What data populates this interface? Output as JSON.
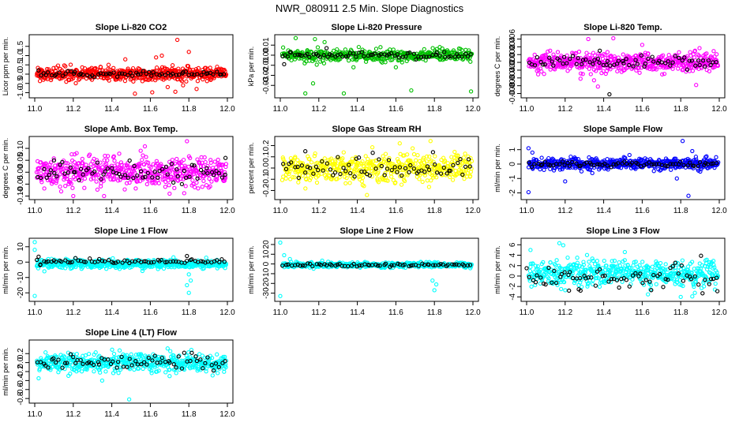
{
  "figure": {
    "title": "NWR_080911  2.5 Min. Slope Diagnostics"
  },
  "colors": {
    "red": "#ff0000",
    "green": "#00c000",
    "magenta": "#ff00ff",
    "yellow": "#ffff00",
    "blue": "#0000ff",
    "cyan": "#00ffff",
    "black": "#000000"
  },
  "chart_data": [
    {
      "type": "scatter",
      "title": "Slope Li-820 CO2",
      "xlabel": "",
      "ylabel": "Licor ppm per min.",
      "xlim": [
        11.0,
        12.0
      ],
      "ylim": [
        -1.15,
        2.0
      ],
      "xticks": [
        11.0,
        11.2,
        11.4,
        11.6,
        11.8,
        12.0
      ],
      "xtick_labels": [
        "11.0",
        "11.2",
        "11.4",
        "11.6",
        "11.8",
        "12.0"
      ],
      "yticks": [
        -1.0,
        -0.5,
        0.0,
        0.5,
        1.0,
        1.5
      ],
      "ytick_labels": [
        "-1.0",
        "-0.5",
        "0.0",
        "0.5",
        "1.0",
        "1.5"
      ],
      "series": [
        {
          "name": "all",
          "color": "red",
          "n": 560,
          "center": 0.0,
          "spread": 0.18,
          "outliers": [
            [
              11.74,
              1.85
            ],
            [
              11.73,
              -0.95
            ],
            [
              11.52,
              -1.05
            ],
            [
              11.61,
              -0.98
            ],
            [
              11.8,
              1.2
            ],
            [
              11.66,
              1.0
            ],
            [
              11.84,
              -0.8
            ],
            [
              11.63,
              0.9
            ],
            [
              11.77,
              -0.6
            ],
            [
              11.47,
              0.8
            ],
            [
              11.69,
              -0.7
            ]
          ]
        },
        {
          "name": "subset",
          "color": "black",
          "n": 70,
          "center": 0.0,
          "spread": 0.07,
          "outliers": []
        }
      ]
    },
    {
      "type": "scatter",
      "title": "Slope Li-820 Pressure",
      "xlabel": "",
      "ylabel": "kPa per min.",
      "xlim": [
        11.0,
        12.0
      ],
      "ylim": [
        -0.04,
        0.018
      ],
      "xticks": [
        11.0,
        11.2,
        11.4,
        11.6,
        11.8,
        12.0
      ],
      "xtick_labels": [
        "11.0",
        "11.2",
        "11.4",
        "11.6",
        "11.8",
        "12.0"
      ],
      "yticks": [
        -0.03,
        -0.02,
        -0.01,
        0.0,
        0.01
      ],
      "ytick_labels": [
        "-0.03",
        "-0.02",
        "-0.01",
        "0.00",
        "0.01"
      ],
      "series": [
        {
          "name": "all",
          "color": "green",
          "n": 420,
          "center": 0.0,
          "spread": 0.003,
          "outliers": [
            [
              11.13,
              -0.038
            ],
            [
              11.33,
              -0.038
            ],
            [
              11.68,
              -0.035
            ],
            [
              11.99,
              -0.036
            ],
            [
              11.18,
              0.016
            ],
            [
              11.08,
              0.017
            ],
            [
              11.17,
              -0.028
            ],
            [
              11.52,
              0.008
            ],
            [
              11.38,
              -0.012
            ],
            [
              11.23,
              0.013
            ],
            [
              11.6,
              -0.012
            ]
          ]
        },
        {
          "name": "subset",
          "color": "black",
          "n": 70,
          "center": 0.0,
          "spread": 0.0015,
          "outliers": [
            [
              11.02,
              -0.009
            ],
            [
              11.05,
              0.003
            ],
            [
              11.24,
              0.007
            ]
          ]
        }
      ]
    },
    {
      "type": "scatter",
      "title": "Slope Li-820 Temp.",
      "xlabel": "",
      "ylabel": "degrees C per min.",
      "xlim": [
        11.0,
        12.0
      ],
      "ylim": [
        -0.0085,
        0.0065
      ],
      "xticks": [
        11.0,
        11.2,
        11.4,
        11.6,
        11.8,
        12.0
      ],
      "xtick_labels": [
        "11.0",
        "11.2",
        "11.4",
        "11.6",
        "11.8",
        "12.0"
      ],
      "yticks": [
        -0.008,
        -0.006,
        -0.004,
        -0.002,
        0.0,
        0.002,
        0.004,
        0.006
      ],
      "ytick_labels": [
        "-0.008",
        "-0.006",
        "-0.004",
        "-0.002",
        "0.000",
        "0.002",
        "0.004",
        "0.006"
      ],
      "series": [
        {
          "name": "all",
          "color": "magenta",
          "n": 520,
          "center": 0.0,
          "spread": 0.0012,
          "outliers": [
            [
              11.45,
              0.0062
            ],
            [
              11.32,
              0.006
            ],
            [
              11.37,
              -0.0062
            ],
            [
              11.88,
              -0.0058
            ],
            [
              11.35,
              -0.0046
            ],
            [
              11.6,
              0.0045
            ],
            [
              11.28,
              -0.0042
            ]
          ]
        },
        {
          "name": "subset",
          "color": "black",
          "n": 70,
          "center": 0.0,
          "spread": 0.0008,
          "outliers": [
            [
              11.43,
              -0.0082
            ],
            [
              11.38,
              0.003
            ]
          ]
        }
      ]
    },
    {
      "type": "scatter",
      "title": "Slope Amb. Box Temp.",
      "xlabel": "",
      "ylabel": "degrees C per min.",
      "xlim": [
        11.0,
        12.0
      ],
      "ylim": [
        -0.105,
        0.14
      ],
      "xticks": [
        11.0,
        11.2,
        11.4,
        11.6,
        11.8,
        12.0
      ],
      "xtick_labels": [
        "11.0",
        "11.2",
        "11.4",
        "11.6",
        "11.8",
        "12.0"
      ],
      "yticks": [
        -0.1,
        -0.05,
        0.0,
        0.05,
        0.1
      ],
      "ytick_labels": [
        "-0.10",
        "-0.05",
        "0.00",
        "0.05",
        "0.10"
      ],
      "series": [
        {
          "name": "all",
          "color": "magenta",
          "n": 520,
          "center": 0.0,
          "spread": 0.03,
          "outliers": [
            [
              11.79,
              0.13
            ],
            [
              11.2,
              -0.1
            ],
            [
              11.36,
              -0.1
            ],
            [
              11.55,
              0.09
            ],
            [
              11.7,
              -0.09
            ]
          ]
        },
        {
          "name": "subset",
          "color": "black",
          "n": 70,
          "center": 0.0,
          "spread": 0.02,
          "outliers": [
            [
              11.99,
              0.06
            ],
            [
              11.1,
              0.05
            ]
          ]
        }
      ]
    },
    {
      "type": "scatter",
      "title": "Slope Gas Stream RH",
      "xlabel": "",
      "ylabel": "percent per min.",
      "xlim": [
        11.0,
        12.0
      ],
      "ylim": [
        -0.26,
        0.26
      ],
      "xticks": [
        11.0,
        11.2,
        11.4,
        11.6,
        11.8,
        12.0
      ],
      "xtick_labels": [
        "11.0",
        "11.2",
        "11.4",
        "11.6",
        "11.8",
        "12.0"
      ],
      "yticks": [
        -0.2,
        -0.1,
        0.0,
        0.1,
        0.2
      ],
      "ytick_labels": [
        "-0.2",
        "-0.1",
        "0.0",
        "0.1",
        "0.2"
      ],
      "series": [
        {
          "name": "all",
          "color": "yellow",
          "n": 520,
          "center": 0.0,
          "spread": 0.06,
          "outliers": [
            [
              11.45,
              -0.24
            ],
            [
              11.78,
              0.24
            ],
            [
              11.62,
              0.22
            ]
          ]
        },
        {
          "name": "subset",
          "color": "black",
          "n": 70,
          "center": 0.0,
          "spread": 0.05,
          "outliers": [
            [
              11.13,
              0.15
            ]
          ]
        }
      ]
    },
    {
      "type": "scatter",
      "title": "Slope Sample Flow",
      "xlabel": "",
      "ylabel": "ml/min per min.",
      "xlim": [
        11.0,
        12.0
      ],
      "ylim": [
        -2.3,
        1.75
      ],
      "xticks": [
        11.0,
        11.2,
        11.4,
        11.6,
        11.8,
        12.0
      ],
      "xtick_labels": [
        "11.0",
        "11.2",
        "11.4",
        "11.6",
        "11.8",
        "12.0"
      ],
      "yticks": [
        -2,
        -1,
        0,
        1
      ],
      "ytick_labels": [
        "-2",
        "-1",
        "0",
        "1"
      ],
      "series": [
        {
          "name": "all",
          "color": "blue",
          "n": 520,
          "center": 0.0,
          "spread": 0.2,
          "outliers": [
            [
              11.01,
              -1.95
            ],
            [
              11.81,
              1.6
            ],
            [
              11.84,
              -2.2
            ],
            [
              11.2,
              -1.2
            ],
            [
              11.01,
              1.1
            ],
            [
              11.03,
              0.8
            ],
            [
              11.78,
              -1.0
            ],
            [
              11.86,
              0.9
            ]
          ]
        },
        {
          "name": "subset",
          "color": "black",
          "n": 70,
          "center": 0.0,
          "spread": 0.1,
          "outliers": []
        }
      ]
    },
    {
      "type": "scatter",
      "title": "Slope Line 1 Flow",
      "xlabel": "",
      "ylabel": "ml/min per min.",
      "xlim": [
        11.0,
        12.0
      ],
      "ylim": [
        -24,
        14
      ],
      "xticks": [
        11.0,
        11.2,
        11.4,
        11.6,
        11.8,
        12.0
      ],
      "xtick_labels": [
        "11.0",
        "11.2",
        "11.4",
        "11.6",
        "11.8",
        "12.0"
      ],
      "yticks": [
        -20,
        -10,
        0,
        10
      ],
      "ytick_labels": [
        "-20",
        "-10",
        "0",
        "10"
      ],
      "series": [
        {
          "name": "all",
          "color": "cyan",
          "n": 500,
          "center": -1.2,
          "spread": 1.4,
          "outliers": [
            [
              11.0,
              13
            ],
            [
              11.0,
              -22
            ],
            [
              11.8,
              -20
            ],
            [
              11.79,
              -15
            ],
            [
              11.81,
              -12
            ],
            [
              11.8,
              -8
            ],
            [
              11.0,
              8
            ],
            [
              11.05,
              -6
            ]
          ]
        },
        {
          "name": "subset",
          "color": "black",
          "n": 70,
          "center": 0.5,
          "spread": 0.7,
          "outliers": [
            [
              11.02,
              3.5
            ],
            [
              11.79,
              4
            ],
            [
              11.03,
              -1.5
            ]
          ]
        }
      ]
    },
    {
      "type": "scatter",
      "title": "Slope Line 2 Flow",
      "xlabel": "",
      "ylabel": "ml/min per min.",
      "xlim": [
        11.0,
        12.0
      ],
      "ylim": [
        -36,
        24
      ],
      "xticks": [
        11.0,
        11.2,
        11.4,
        11.6,
        11.8,
        12.0
      ],
      "xtick_labels": [
        "11.0",
        "11.2",
        "11.4",
        "11.6",
        "11.8",
        "12.0"
      ],
      "yticks": [
        -30,
        -20,
        -10,
        0,
        10,
        20
      ],
      "ytick_labels": [
        "-30",
        "-20",
        "-10",
        "0",
        "10",
        "20"
      ],
      "series": [
        {
          "name": "all",
          "color": "cyan",
          "n": 500,
          "center": -1.0,
          "spread": 1.3,
          "outliers": [
            [
              11.0,
              22
            ],
            [
              11.0,
              -33
            ],
            [
              11.8,
              -27
            ],
            [
              11.79,
              -17
            ],
            [
              11.81,
              -21
            ],
            [
              11.02,
              9
            ],
            [
              11.05,
              5
            ]
          ]
        },
        {
          "name": "subset",
          "color": "black",
          "n": 70,
          "center": -1.0,
          "spread": 0.7,
          "outliers": []
        }
      ]
    },
    {
      "type": "scatter",
      "title": "Slope Line 3 Flow",
      "xlabel": "",
      "ylabel": "ml/min per min.",
      "xlim": [
        11.0,
        12.0
      ],
      "ylim": [
        -4.4,
        6.8
      ],
      "xticks": [
        11.0,
        11.2,
        11.4,
        11.6,
        11.8,
        12.0
      ],
      "xtick_labels": [
        "11.0",
        "11.2",
        "11.4",
        "11.6",
        "11.8",
        "12.0"
      ],
      "yticks": [
        -4,
        -2,
        0,
        2,
        4,
        6
      ],
      "ytick_labels": [
        "-4",
        "-2",
        "0",
        "2",
        "4",
        "6"
      ],
      "series": [
        {
          "name": "all",
          "color": "cyan",
          "n": 520,
          "center": 0.5,
          "spread": 1.2,
          "outliers": [
            [
              11.17,
              6.3
            ],
            [
              11.19,
              5.9
            ],
            [
              11.02,
              5.0
            ],
            [
              11.8,
              -4.0
            ],
            [
              11.86,
              -3.9
            ],
            [
              11.63,
              -3.5
            ],
            [
              11.51,
              4.6
            ]
          ]
        },
        {
          "name": "subset",
          "color": "black",
          "n": 70,
          "center": -0.3,
          "spread": 1.2,
          "outliers": [
            [
              11.28,
              -2.8
            ],
            [
              11.99,
              -2.9
            ],
            [
              11.22,
              -2.8
            ],
            [
              11.0,
              1.5
            ]
          ]
        }
      ]
    },
    {
      "type": "scatter",
      "title": "Slope Line 4 (LT) Flow",
      "xlabel": "",
      "ylabel": "ml/min per min.",
      "xlim": [
        11.0,
        12.0
      ],
      "ylim": [
        -0.85,
        0.45
      ],
      "xticks": [
        11.0,
        11.2,
        11.4,
        11.6,
        11.8,
        12.0
      ],
      "xtick_labels": [
        "11.0",
        "11.2",
        "11.4",
        "11.6",
        "11.8",
        "12.0"
      ],
      "yticks": [
        -0.8,
        -0.6,
        -0.4,
        -0.2,
        0.0,
        0.2
      ],
      "ytick_labels": [
        "-0.8",
        "-0.6",
        "-0.4",
        "-0.2",
        "0.0",
        "0.2"
      ],
      "series": [
        {
          "name": "all",
          "color": "cyan",
          "n": 520,
          "center": 0.0,
          "spread": 0.1,
          "outliers": [
            [
              11.49,
              -0.82
            ],
            [
              11.35,
              -0.4
            ],
            [
              11.02,
              -0.35
            ],
            [
              11.7,
              -0.3
            ]
          ]
        },
        {
          "name": "subset",
          "color": "black",
          "n": 70,
          "center": 0.0,
          "spread": 0.08,
          "outliers": []
        }
      ]
    }
  ]
}
